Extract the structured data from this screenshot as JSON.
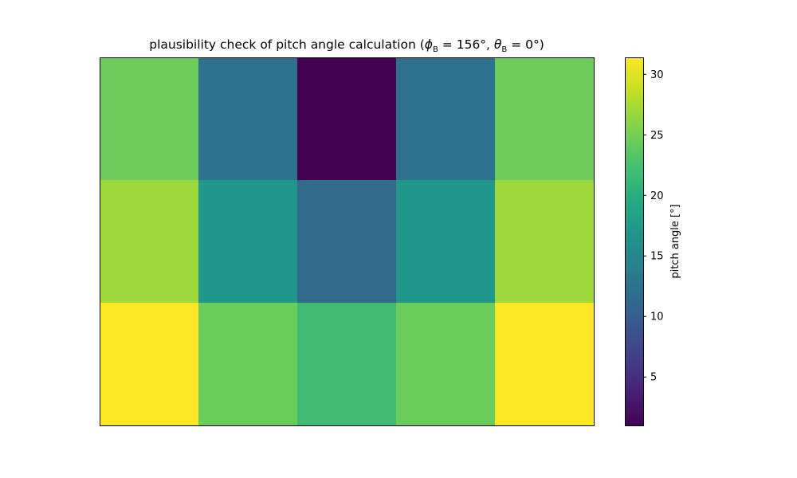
{
  "chart_data": {
    "type": "heatmap",
    "title_text": "plausibility check of pitch angle calculation (",
    "title_phi_symbol": "ϕ",
    "title_phi_sub": "B",
    "title_phi_value": " = 156°,  ",
    "title_theta_symbol": "θ",
    "title_theta_sub": "B",
    "title_theta_value": " = 0°)",
    "rows": 3,
    "cols": 5,
    "values": [
      [
        24.5,
        12.3,
        1.0,
        12.3,
        24.5
      ],
      [
        26.9,
        17.0,
        11.5,
        17.0,
        26.9
      ],
      [
        31.4,
        24.4,
        21.8,
        24.4,
        31.4
      ]
    ],
    "colormap": "viridis",
    "vmin": 1.0,
    "vmax": 31.4,
    "colorbar": {
      "label": "pitch angle [°]",
      "ticks": [
        5,
        10,
        15,
        20,
        25,
        30
      ],
      "tick_labels": [
        "5",
        "10",
        "15",
        "20",
        "25",
        "30"
      ]
    },
    "axes_ticks_visible": false
  }
}
